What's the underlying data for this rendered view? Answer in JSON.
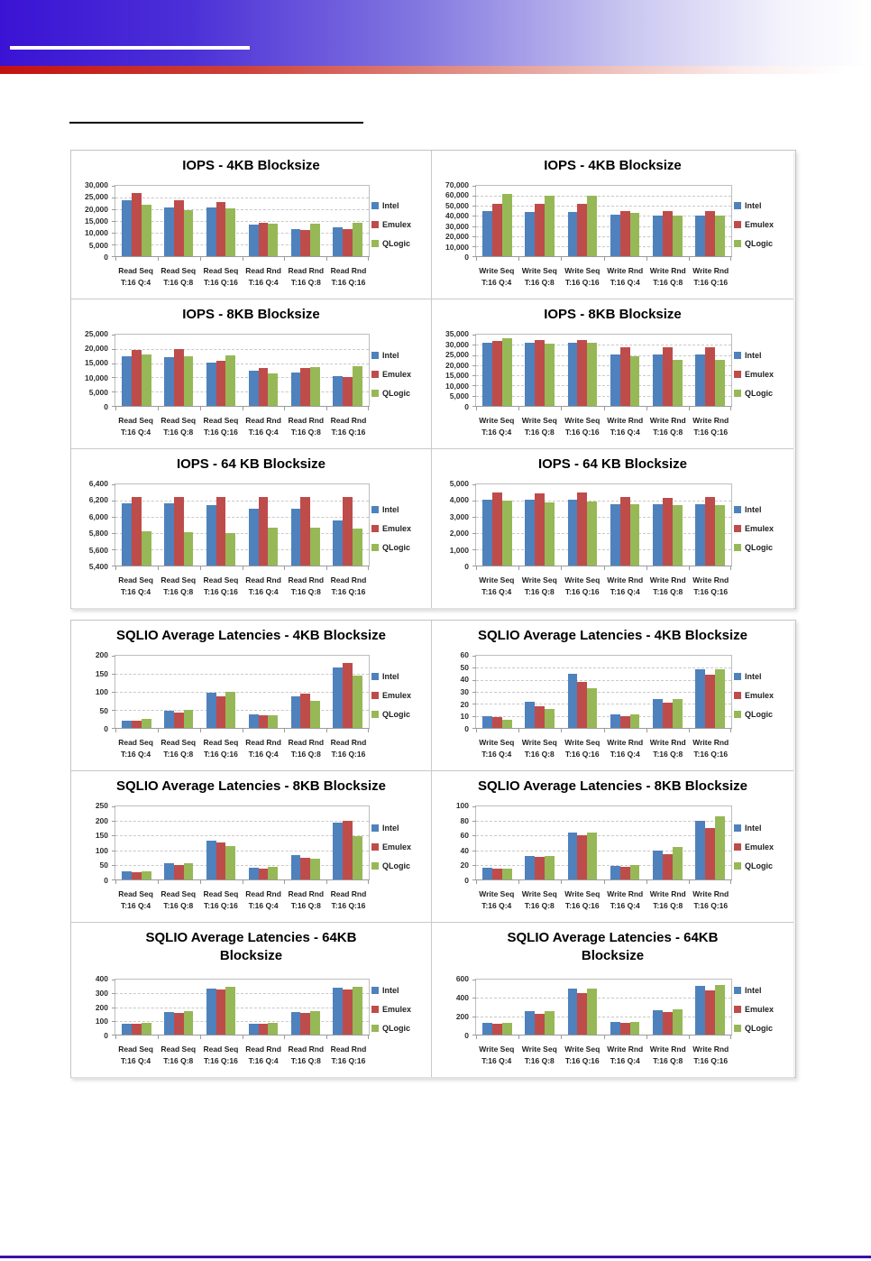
{
  "theme": {
    "header_blue": "#3a13d4",
    "header_red": "#c31110",
    "footer_line_color": "#3a10a8",
    "series_colors": {
      "Intel": "#4F81BD",
      "Emulex": "#BE4C4A",
      "QLogic": "#97B857"
    }
  },
  "legend": {
    "items": [
      "Intel",
      "Emulex",
      "QLogic"
    ]
  },
  "categories_read": [
    [
      "Read Seq",
      "T:16 Q:4"
    ],
    [
      "Read Seq",
      "T:16 Q:8"
    ],
    [
      "Read Seq",
      "T:16 Q:16"
    ],
    [
      "Read Rnd",
      "T:16 Q:4"
    ],
    [
      "Read Rnd",
      "T:16 Q:8"
    ],
    [
      "Read Rnd",
      "T:16 Q:16"
    ]
  ],
  "categories_write": [
    [
      "Write Seq",
      "T:16 Q:4"
    ],
    [
      "Write Seq",
      "T:16 Q:8"
    ],
    [
      "Write Seq",
      "T:16 Q:16"
    ],
    [
      "Write Rnd",
      "T:16 Q:4"
    ],
    [
      "Write Rnd",
      "T:16 Q:8"
    ],
    [
      "Write Rnd",
      "T:16 Q:16"
    ]
  ],
  "chart_data": [
    {
      "type": "bar",
      "name": "iops-4kb-read",
      "title": "IOPS - 4KB Blocksize",
      "ylim": [
        0,
        30000
      ],
      "ystep": 5000,
      "yticks": [
        "0",
        "5,000",
        "10,000",
        "15,000",
        "20,000",
        "25,000",
        "30,000"
      ],
      "categories": "read",
      "grid": true,
      "legend_position": "right",
      "series": [
        {
          "name": "Intel",
          "values": [
            24000,
            20700,
            20700,
            13400,
            11700,
            12300
          ]
        },
        {
          "name": "Emulex",
          "values": [
            26800,
            23700,
            23200,
            14300,
            11100,
            11400
          ]
        },
        {
          "name": "QLogic",
          "values": [
            21900,
            19800,
            20400,
            13900,
            13900,
            14200
          ]
        }
      ]
    },
    {
      "type": "bar",
      "name": "iops-4kb-write",
      "title": "IOPS - 4KB Blocksize",
      "ylim": [
        0,
        70000
      ],
      "ystep": 10000,
      "yticks": [
        "0",
        "10,000",
        "20,000",
        "30,000",
        "40,000",
        "50,000",
        "60,000",
        "70,000"
      ],
      "categories": "write",
      "grid": true,
      "legend_position": "right",
      "series": [
        {
          "name": "Intel",
          "values": [
            45000,
            44200,
            44200,
            41500,
            40700,
            40700
          ]
        },
        {
          "name": "Emulex",
          "values": [
            52500,
            52500,
            51700,
            45200,
            45200,
            45200
          ]
        },
        {
          "name": "QLogic",
          "values": [
            61500,
            60000,
            60000,
            42800,
            40200,
            40200
          ]
        }
      ]
    },
    {
      "type": "bar",
      "name": "iops-8kb-read",
      "title": "IOPS - 8KB Blocksize",
      "ylim": [
        0,
        25000
      ],
      "ystep": 5000,
      "yticks": [
        "0",
        "5,000",
        "10,000",
        "15,000",
        "20,000",
        "25,000"
      ],
      "categories": "read",
      "grid": true,
      "legend_position": "right",
      "series": [
        {
          "name": "Intel",
          "values": [
            17500,
            17200,
            15200,
            12200,
            11800,
            10500
          ]
        },
        {
          "name": "Emulex",
          "values": [
            19700,
            19800,
            15700,
            13300,
            13400,
            10000
          ]
        },
        {
          "name": "QLogic",
          "values": [
            18100,
            17400,
            17800,
            11400,
            13700,
            13900
          ]
        }
      ]
    },
    {
      "type": "bar",
      "name": "iops-8kb-write",
      "title": "IOPS - 8KB Blocksize",
      "ylim": [
        0,
        35000
      ],
      "ystep": 5000,
      "yticks": [
        "0",
        "5,000",
        "10,000",
        "15,000",
        "20,000",
        "25,000",
        "30,000",
        "35,000"
      ],
      "categories": "write",
      "grid": true,
      "legend_position": "right",
      "series": [
        {
          "name": "Intel",
          "values": [
            31000,
            31000,
            31000,
            25200,
            25200,
            25200
          ]
        },
        {
          "name": "Emulex",
          "values": [
            32100,
            32400,
            32400,
            28800,
            28800,
            28800
          ]
        },
        {
          "name": "QLogic",
          "values": [
            33200,
            30700,
            31000,
            24200,
            22800,
            22800
          ]
        }
      ]
    },
    {
      "type": "bar",
      "name": "iops-64kb-read",
      "title": "IOPS - 64 KB Blocksize",
      "ylim": [
        5400,
        6400
      ],
      "ystep": 200,
      "yticks": [
        "5,400",
        "5,600",
        "5,800",
        "6,000",
        "6,200",
        "6,400"
      ],
      "categories": "read",
      "grid": true,
      "legend_position": "right",
      "series": [
        {
          "name": "Intel",
          "values": [
            6165,
            6165,
            6145,
            6095,
            6095,
            5955
          ]
        },
        {
          "name": "Emulex",
          "values": [
            6250,
            6250,
            6250,
            6250,
            6250,
            6250
          ]
        },
        {
          "name": "QLogic",
          "values": [
            5820,
            5815,
            5805,
            5870,
            5870,
            5855
          ]
        }
      ]
    },
    {
      "type": "bar",
      "name": "iops-64kb-write",
      "title": "IOPS - 64 KB Blocksize",
      "ylim": [
        0,
        5000
      ],
      "ystep": 1000,
      "yticks": [
        "0",
        "1,000",
        "2,000",
        "3,000",
        "4,000",
        "5,000"
      ],
      "categories": "write",
      "grid": true,
      "legend_position": "right",
      "series": [
        {
          "name": "Intel",
          "values": [
            4050,
            4050,
            4070,
            3800,
            3800,
            3800
          ]
        },
        {
          "name": "Emulex",
          "values": [
            4500,
            4450,
            4500,
            4200,
            4150,
            4200
          ]
        },
        {
          "name": "QLogic",
          "values": [
            4020,
            3870,
            3970,
            3780,
            3720,
            3720
          ]
        }
      ]
    },
    {
      "type": "bar",
      "name": "latency-4kb-read",
      "title": "SQLIO Average Latencies - 4KB Blocksize",
      "ylim": [
        0,
        200
      ],
      "ystep": 50,
      "yticks": [
        "0",
        "50",
        "100",
        "150",
        "200"
      ],
      "categories": "read",
      "grid": true,
      "legend_position": "right",
      "series": [
        {
          "name": "Intel",
          "values": [
            21,
            48,
            97,
            38,
            88,
            167
          ]
        },
        {
          "name": "Emulex",
          "values": [
            19,
            42,
            88,
            36,
            94,
            181
          ]
        },
        {
          "name": "QLogic",
          "values": [
            24,
            50,
            99,
            36,
            75,
            144
          ]
        }
      ]
    },
    {
      "type": "bar",
      "name": "latency-4kb-write",
      "title": "SQLIO Average Latencies - 4KB Blocksize",
      "ylim": [
        0,
        60
      ],
      "ystep": 10,
      "yticks": [
        "0",
        "10",
        "20",
        "30",
        "40",
        "50",
        "60"
      ],
      "categories": "write",
      "grid": true,
      "legend_position": "right",
      "series": [
        {
          "name": "Intel",
          "values": [
            10,
            22,
            45,
            11,
            24,
            49
          ]
        },
        {
          "name": "Emulex",
          "values": [
            9,
            18,
            38,
            10,
            21,
            44
          ]
        },
        {
          "name": "QLogic",
          "values": [
            7,
            16,
            33,
            11,
            24,
            49
          ]
        }
      ]
    },
    {
      "type": "bar",
      "name": "latency-8kb-read",
      "title": "SQLIO Average Latencies - 8KB Blocksize",
      "ylim": [
        0,
        250
      ],
      "ystep": 50,
      "yticks": [
        "0",
        "50",
        "100",
        "150",
        "200",
        "250"
      ],
      "categories": "read",
      "grid": true,
      "legend_position": "right",
      "series": [
        {
          "name": "Intel",
          "values": [
            28,
            57,
            133,
            40,
            84,
            193
          ]
        },
        {
          "name": "Emulex",
          "values": [
            25,
            48,
            128,
            37,
            75,
            200
          ]
        },
        {
          "name": "QLogic",
          "values": [
            28,
            55,
            113,
            44,
            72,
            148
          ]
        }
      ]
    },
    {
      "type": "bar",
      "name": "latency-8kb-write",
      "title": "SQLIO Average Latencies - 8KB Blocksize",
      "ylim": [
        0,
        100
      ],
      "ystep": 20,
      "yticks": [
        "0",
        "20",
        "40",
        "60",
        "80",
        "100"
      ],
      "categories": "write",
      "grid": true,
      "legend_position": "right",
      "series": [
        {
          "name": "Intel",
          "values": [
            16,
            32,
            64,
            19,
            39,
            80
          ]
        },
        {
          "name": "Emulex",
          "values": [
            15,
            31,
            61,
            17,
            35,
            71
          ]
        },
        {
          "name": "QLogic",
          "values": [
            15,
            32,
            64,
            20,
            44,
            87
          ]
        }
      ]
    },
    {
      "type": "bar",
      "name": "latency-64kb-read",
      "title": "SQLIO Average Latencies - 64KB Blocksize",
      "title_lines": [
        "SQLIO Average Latencies - 64KB",
        "Blocksize"
      ],
      "ylim": [
        0,
        400
      ],
      "ystep": 100,
      "yticks": [
        "0",
        "100",
        "200",
        "300",
        "400"
      ],
      "categories": "read",
      "grid": true,
      "legend_position": "right",
      "series": [
        {
          "name": "Intel",
          "values": [
            82,
            165,
            332,
            82,
            165,
            342
          ]
        },
        {
          "name": "Emulex",
          "values": [
            80,
            160,
            327,
            80,
            160,
            327
          ]
        },
        {
          "name": "QLogic",
          "values": [
            85,
            170,
            348,
            85,
            170,
            348
          ]
        }
      ]
    },
    {
      "type": "bar",
      "name": "latency-64kb-write",
      "title": "SQLIO Average Latencies - 64KB Blocksize",
      "title_lines": [
        "SQLIO Average Latencies - 64KB",
        "Blocksize"
      ],
      "ylim": [
        0,
        600
      ],
      "ystep": 200,
      "yticks": [
        "0",
        "200",
        "400",
        "600"
      ],
      "categories": "write",
      "grid": true,
      "legend_position": "right",
      "series": [
        {
          "name": "Intel",
          "values": [
            128,
            252,
            498,
            133,
            267,
            530
          ]
        },
        {
          "name": "Emulex",
          "values": [
            118,
            228,
            455,
            125,
            245,
            485
          ]
        },
        {
          "name": "QLogic",
          "values": [
            128,
            260,
            505,
            133,
            278,
            545
          ]
        }
      ]
    }
  ]
}
